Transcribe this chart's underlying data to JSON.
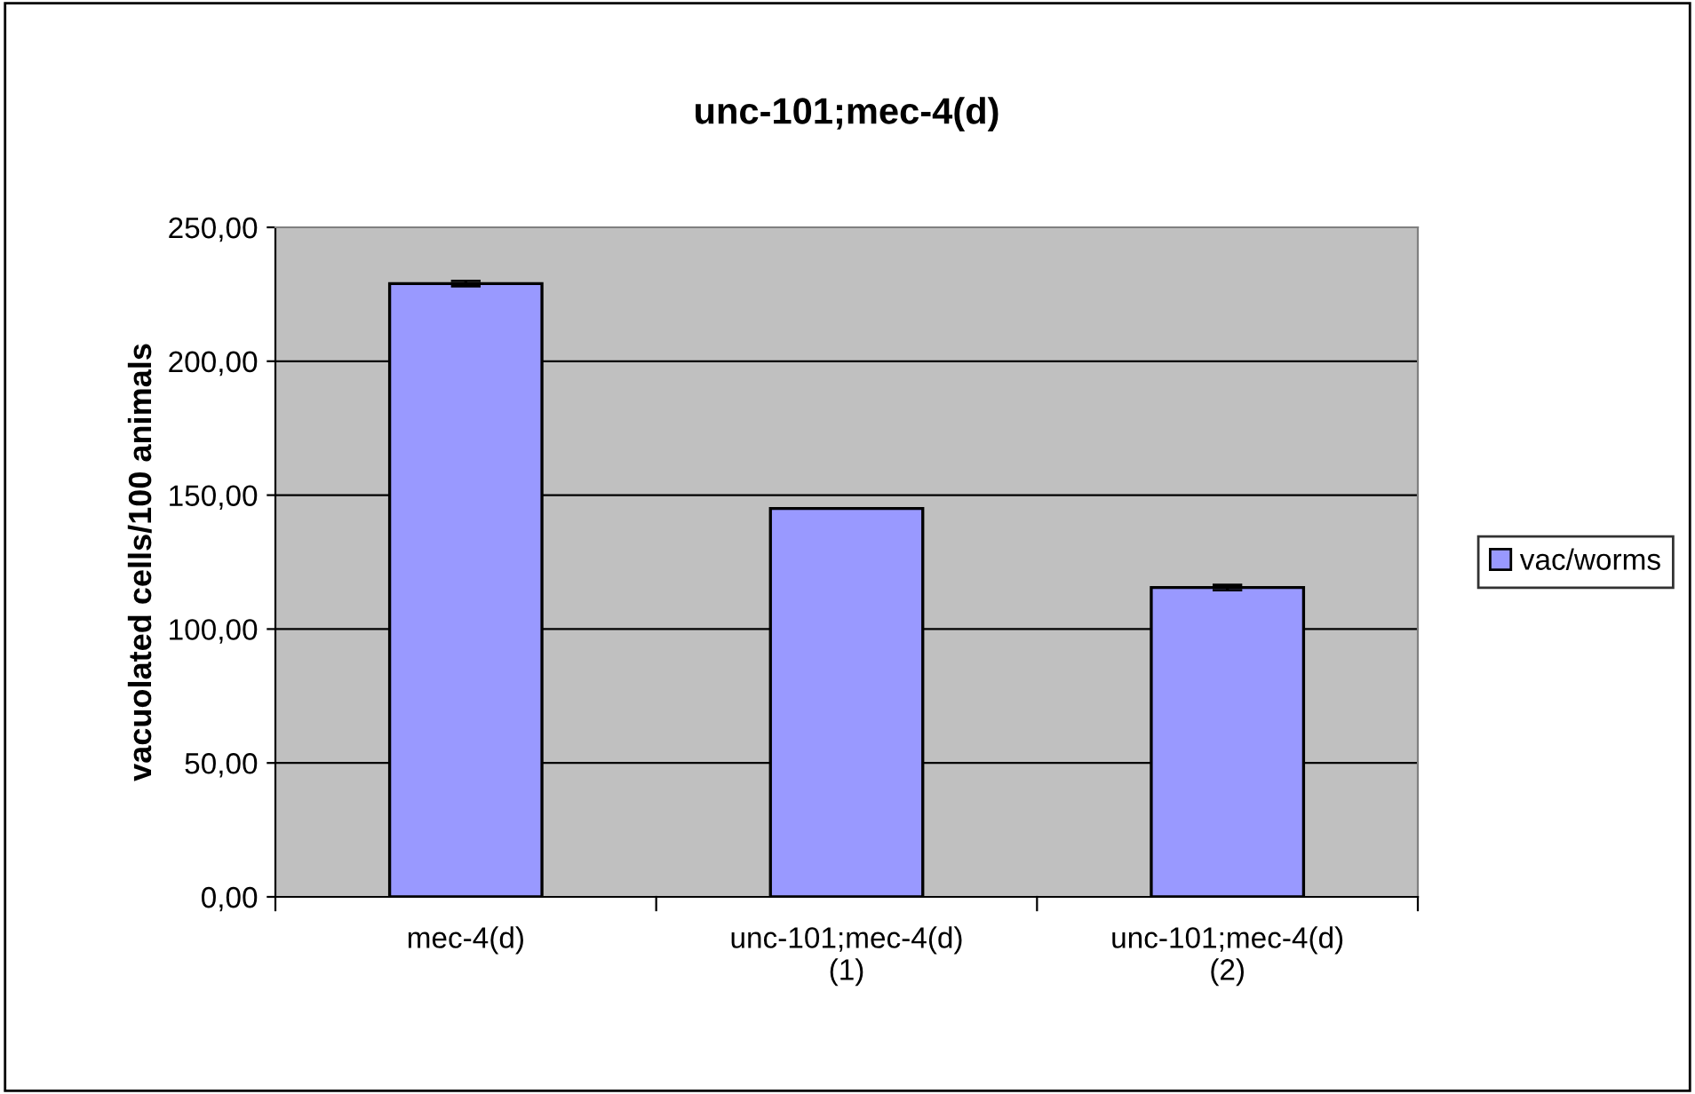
{
  "chart_data": {
    "type": "bar",
    "title": "unc-101;mec-4(d)",
    "ylabel": "vacuolated cells/100 animals",
    "categories": [
      "mec-4(d)",
      "unc-101;mec-4(d)\n(1)",
      "unc-101;mec-4(d)\n(2)"
    ],
    "series": [
      {
        "name": "vac/worms",
        "color": "#9999ff",
        "values": [
          229,
          145,
          115.5
        ],
        "errors": [
          1,
          null,
          1
        ]
      }
    ],
    "ylim": [
      0,
      250
    ],
    "yticks": [
      {
        "value": 0,
        "label": "0,00"
      },
      {
        "value": 50,
        "label": "50,00"
      },
      {
        "value": 100,
        "label": "100,00"
      },
      {
        "value": 150,
        "label": "150,00"
      },
      {
        "value": 200,
        "label": "200,00"
      },
      {
        "value": 250,
        "label": "250,00"
      }
    ],
    "grid": "y",
    "legend": "right"
  }
}
